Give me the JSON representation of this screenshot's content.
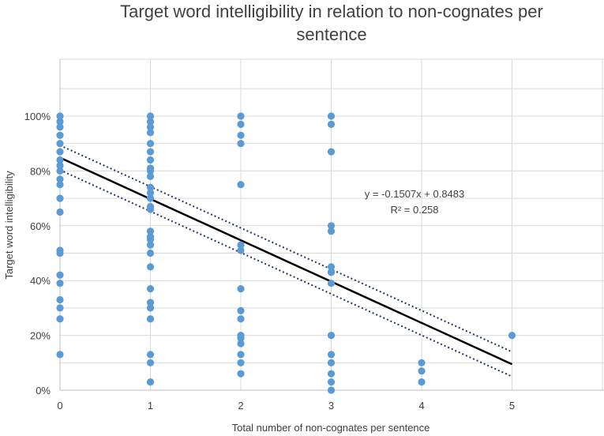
{
  "chart_data": {
    "type": "scatter",
    "title": "Target word intelligibility in relation to non-cognates per sentence",
    "xlabel": "Total number of non-cognates per sentence",
    "ylabel": "Target word intelligibility",
    "xlim": [
      0,
      6
    ],
    "ylim": [
      0,
      1.15
    ],
    "x_ticks": [
      "0",
      "1",
      "2",
      "3",
      "4",
      "5"
    ],
    "y_ticks": [
      "0%",
      "20%",
      "40%",
      "60%",
      "80%",
      "100%"
    ],
    "grid": true,
    "point_color": "#5b9bd5",
    "line_color": "#000000",
    "points": [
      {
        "x": 0,
        "y": 1.0
      },
      {
        "x": 0,
        "y": 0.98
      },
      {
        "x": 0,
        "y": 0.96
      },
      {
        "x": 0,
        "y": 0.93
      },
      {
        "x": 0,
        "y": 0.9
      },
      {
        "x": 0,
        "y": 0.87
      },
      {
        "x": 0,
        "y": 0.84
      },
      {
        "x": 0,
        "y": 0.82
      },
      {
        "x": 0,
        "y": 0.8
      },
      {
        "x": 0,
        "y": 0.77
      },
      {
        "x": 0,
        "y": 0.75
      },
      {
        "x": 0,
        "y": 0.7
      },
      {
        "x": 0,
        "y": 0.65
      },
      {
        "x": 0,
        "y": 0.51
      },
      {
        "x": 0,
        "y": 0.5
      },
      {
        "x": 0,
        "y": 0.42
      },
      {
        "x": 0,
        "y": 0.39
      },
      {
        "x": 0,
        "y": 0.33
      },
      {
        "x": 0,
        "y": 0.3
      },
      {
        "x": 0,
        "y": 0.26
      },
      {
        "x": 0,
        "y": 0.13
      },
      {
        "x": 1,
        "y": 1.0
      },
      {
        "x": 1,
        "y": 0.98
      },
      {
        "x": 1,
        "y": 0.96
      },
      {
        "x": 1,
        "y": 0.94
      },
      {
        "x": 1,
        "y": 0.9
      },
      {
        "x": 1,
        "y": 0.87
      },
      {
        "x": 1,
        "y": 0.84
      },
      {
        "x": 1,
        "y": 0.81
      },
      {
        "x": 1,
        "y": 0.8
      },
      {
        "x": 1,
        "y": 0.78
      },
      {
        "x": 1,
        "y": 0.74
      },
      {
        "x": 1,
        "y": 0.72
      },
      {
        "x": 1,
        "y": 0.7
      },
      {
        "x": 1,
        "y": 0.67
      },
      {
        "x": 1,
        "y": 0.66
      },
      {
        "x": 1,
        "y": 0.58
      },
      {
        "x": 1,
        "y": 0.56
      },
      {
        "x": 1,
        "y": 0.55
      },
      {
        "x": 1,
        "y": 0.53
      },
      {
        "x": 1,
        "y": 0.5
      },
      {
        "x": 1,
        "y": 0.45
      },
      {
        "x": 1,
        "y": 0.37
      },
      {
        "x": 1,
        "y": 0.32
      },
      {
        "x": 1,
        "y": 0.3
      },
      {
        "x": 1,
        "y": 0.26
      },
      {
        "x": 1,
        "y": 0.13
      },
      {
        "x": 1,
        "y": 0.1
      },
      {
        "x": 1,
        "y": 0.03
      },
      {
        "x": 2,
        "y": 1.0
      },
      {
        "x": 2,
        "y": 0.97
      },
      {
        "x": 2,
        "y": 0.93
      },
      {
        "x": 2,
        "y": 0.9
      },
      {
        "x": 2,
        "y": 0.75
      },
      {
        "x": 2,
        "y": 0.53
      },
      {
        "x": 2,
        "y": 0.51
      },
      {
        "x": 2,
        "y": 0.37
      },
      {
        "x": 2,
        "y": 0.29
      },
      {
        "x": 2,
        "y": 0.26
      },
      {
        "x": 2,
        "y": 0.2
      },
      {
        "x": 2,
        "y": 0.19
      },
      {
        "x": 2,
        "y": 0.17
      },
      {
        "x": 2,
        "y": 0.13
      },
      {
        "x": 2,
        "y": 0.1
      },
      {
        "x": 2,
        "y": 0.06
      },
      {
        "x": 3,
        "y": 1.0
      },
      {
        "x": 3,
        "y": 0.97
      },
      {
        "x": 3,
        "y": 0.87
      },
      {
        "x": 3,
        "y": 0.6
      },
      {
        "x": 3,
        "y": 0.58
      },
      {
        "x": 3,
        "y": 0.45
      },
      {
        "x": 3,
        "y": 0.43
      },
      {
        "x": 3,
        "y": 0.39
      },
      {
        "x": 3,
        "y": 0.2
      },
      {
        "x": 3,
        "y": 0.13
      },
      {
        "x": 3,
        "y": 0.1
      },
      {
        "x": 3,
        "y": 0.06
      },
      {
        "x": 3,
        "y": 0.03
      },
      {
        "x": 3,
        "y": 0.0
      },
      {
        "x": 4,
        "y": 0.1
      },
      {
        "x": 4,
        "y": 0.07
      },
      {
        "x": 4,
        "y": 0.03
      },
      {
        "x": 5,
        "y": 0.2
      }
    ],
    "trendline": {
      "slope": -0.1507,
      "intercept": 0.8483,
      "x_range": [
        0,
        5
      ],
      "confidence_offset": 0.045,
      "equation_label": "y = -0.1507x + 0.8483",
      "r2_label": "R² = 0.258"
    }
  }
}
